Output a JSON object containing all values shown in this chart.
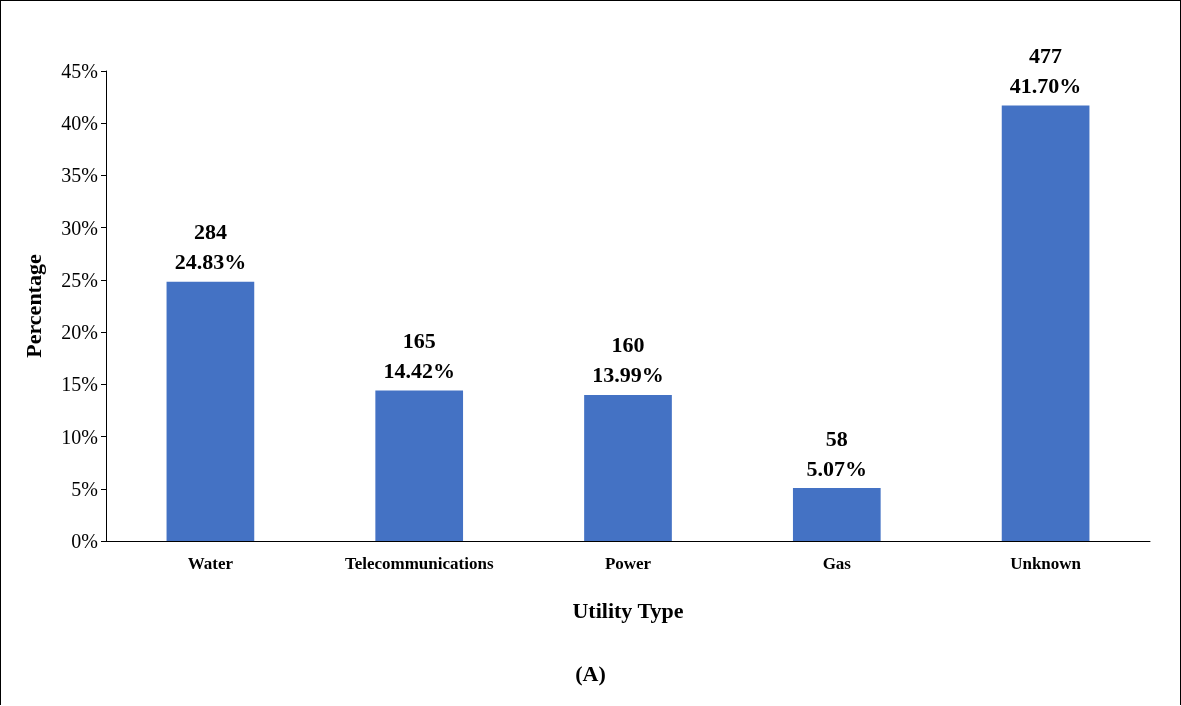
{
  "chart_data": {
    "type": "bar",
    "xlabel": "Utility Type",
    "ylabel": "Percentage",
    "categories": [
      "Water",
      "Telecommunications",
      "Power",
      "Gas",
      "Unknown"
    ],
    "values": [
      24.83,
      14.42,
      13.99,
      5.07,
      41.7
    ],
    "value_labels": [
      "284\n24.83%",
      "165\n14.42%",
      "160\n13.99%",
      "58\n5.07%",
      "477\n41.70%"
    ],
    "color": "#4472c4",
    "ylim": [
      0,
      45
    ],
    "yticks": [
      {
        "value": 0,
        "label": "0%"
      },
      {
        "value": 5,
        "label": "5%"
      },
      {
        "value": 10,
        "label": "10%"
      },
      {
        "value": 15,
        "label": "15%"
      },
      {
        "value": 20,
        "label": "20%"
      },
      {
        "value": 25,
        "label": "25%"
      },
      {
        "value": 30,
        "label": "30%"
      },
      {
        "value": 35,
        "label": "35%"
      },
      {
        "value": 40,
        "label": "40%"
      },
      {
        "value": 45,
        "label": "45%"
      }
    ],
    "grid": false,
    "annotations": [
      "(A)"
    ]
  }
}
